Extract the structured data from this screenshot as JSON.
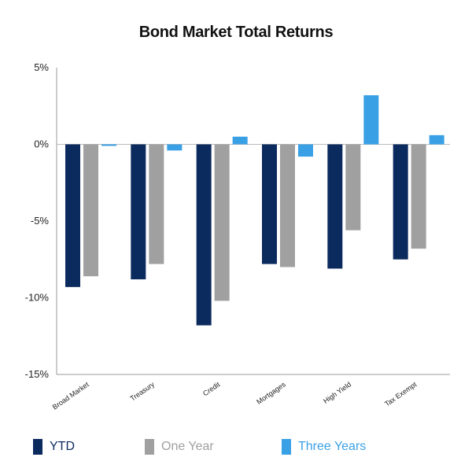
{
  "chart_data": {
    "type": "bar",
    "title": "Bond Market Total Returns",
    "categories": [
      "Broad Market",
      "Treasury",
      "Credit",
      "Mortgages",
      "High Yield",
      "Tax Exempt"
    ],
    "series": [
      {
        "name": "YTD",
        "color": "#0b2a5e",
        "values": [
          -9.3,
          -8.8,
          -11.8,
          -7.8,
          -8.1,
          -7.5
        ]
      },
      {
        "name": "One Year",
        "color": "#a0a0a0",
        "values": [
          -8.6,
          -7.8,
          -10.2,
          -8.0,
          -5.6,
          -6.8
        ]
      },
      {
        "name": "Three Years",
        "color": "#3aa0e6",
        "values": [
          -0.1,
          -0.4,
          0.5,
          -0.8,
          3.2,
          0.6
        ]
      }
    ],
    "ylim": [
      -15,
      5
    ],
    "yticks": [
      5,
      0,
      -5,
      -10,
      -15
    ],
    "ytick_labels": [
      "5%",
      "0%",
      "-5%",
      "-10%",
      "-15%"
    ],
    "xlabel": "",
    "ylabel": "",
    "grid": false,
    "legend_position": "bottom"
  }
}
